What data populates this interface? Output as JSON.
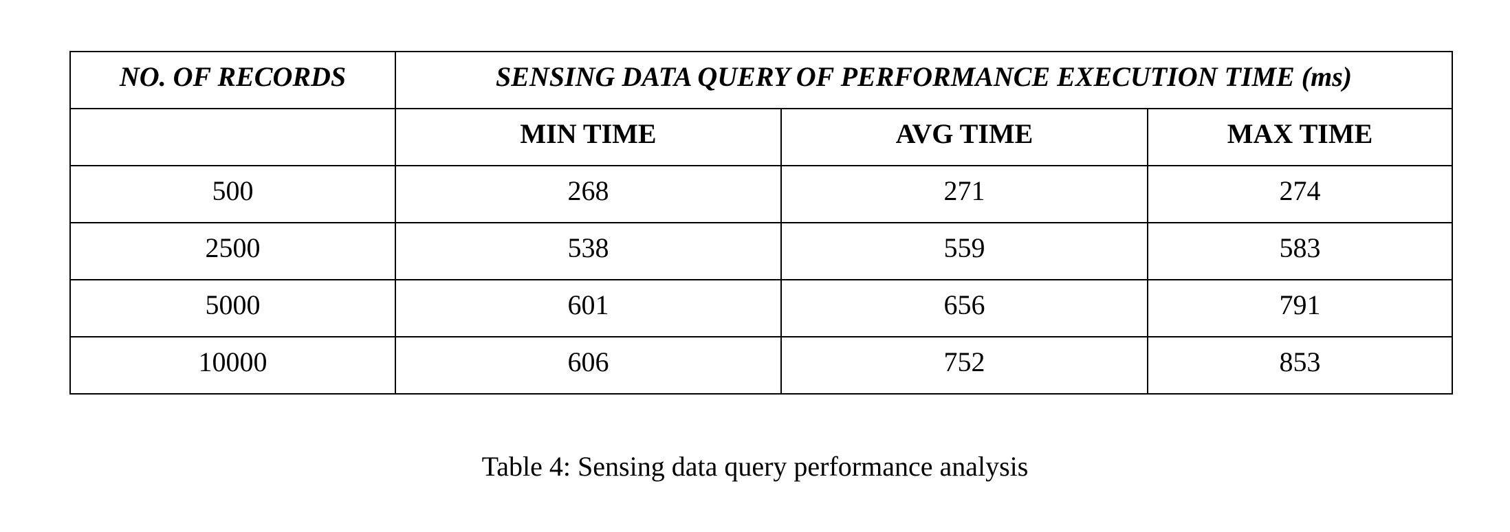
{
  "table": {
    "header_top": {
      "records": "NO. OF RECORDS",
      "group": "SENSING DATA QUERY OF PERFORMANCE EXECUTION TIME (ms)"
    },
    "header_sub": {
      "records": "",
      "min": "MIN TIME",
      "avg": "AVG TIME",
      "max": "MAX TIME"
    },
    "rows": [
      {
        "records": "500",
        "min": "268",
        "avg": "271",
        "max": "274"
      },
      {
        "records": "2500",
        "min": "538",
        "avg": "559",
        "max": "583"
      },
      {
        "records": "5000",
        "min": "601",
        "avg": "656",
        "max": "791"
      },
      {
        "records": "10000",
        "min": "606",
        "avg": "752",
        "max": "853"
      }
    ]
  },
  "caption": "Table 4: Sensing data query performance analysis"
}
